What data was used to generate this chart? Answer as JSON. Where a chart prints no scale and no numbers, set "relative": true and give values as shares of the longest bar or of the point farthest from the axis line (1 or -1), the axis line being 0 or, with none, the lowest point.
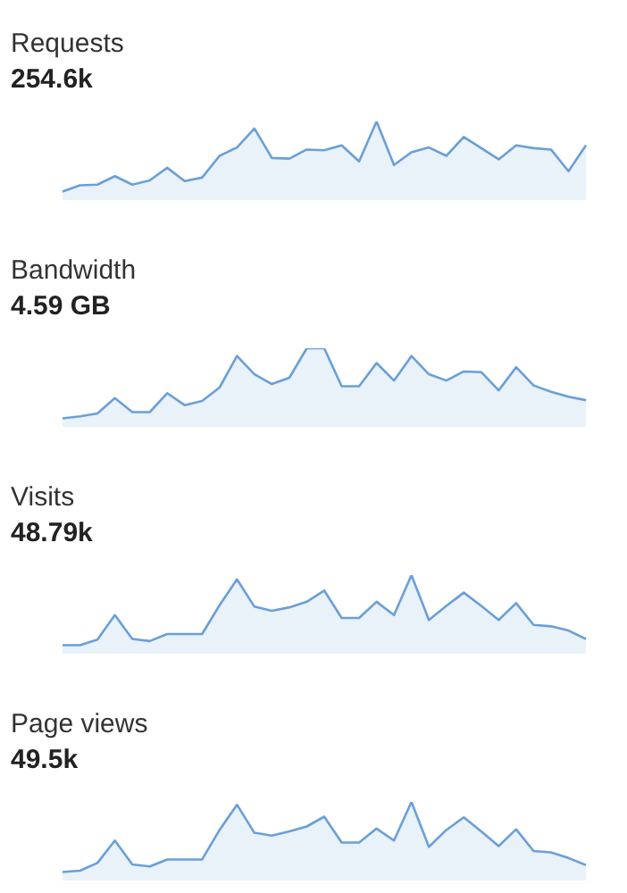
{
  "chart_data": [
    {
      "type": "area",
      "title": "Requests",
      "subtitle": "254.6k",
      "relative": true,
      "color": "#6a9fd8",
      "categories": [
        null,
        null,
        null,
        null,
        null,
        null,
        null,
        null,
        null,
        null,
        null,
        null,
        null,
        null,
        null,
        null,
        null,
        null,
        null,
        null,
        null,
        null,
        null,
        null,
        null,
        null,
        null,
        null,
        null,
        null,
        null
      ],
      "values": [
        0,
        0.09,
        0.1,
        0.22,
        0.1,
        0.16,
        0.34,
        0.15,
        0.2,
        0.51,
        0.63,
        0.9,
        0.48,
        0.47,
        0.6,
        0.59,
        0.66,
        0.43,
        1,
        0.38,
        0.56,
        0.63,
        0.51,
        0.78,
        0.62,
        0.46,
        0.66,
        0.62,
        0.6,
        0.29,
        0.66
      ]
    },
    {
      "type": "area",
      "title": "Bandwidth",
      "subtitle": "4.59 GB",
      "relative": true,
      "color": "#6a9fd8",
      "categories": [
        null,
        null,
        null,
        null,
        null,
        null,
        null,
        null,
        null,
        null,
        null,
        null,
        null,
        null,
        null,
        null,
        null,
        null,
        null,
        null,
        null,
        null,
        null,
        null,
        null,
        null,
        null,
        null,
        null,
        null,
        null
      ],
      "values": [
        0,
        0.03,
        0.07,
        0.29,
        0.09,
        0.09,
        0.36,
        0.19,
        0.25,
        0.44,
        0.89,
        0.63,
        0.49,
        0.58,
        1,
        1,
        0.46,
        0.46,
        0.79,
        0.54,
        0.89,
        0.63,
        0.54,
        0.67,
        0.66,
        0.4,
        0.73,
        0.47,
        0.38,
        0.31,
        0.26
      ]
    },
    {
      "type": "area",
      "title": "Visits",
      "subtitle": "48.79k",
      "relative": true,
      "color": "#6a9fd8",
      "categories": [
        null,
        null,
        null,
        null,
        null,
        null,
        null,
        null,
        null,
        null,
        null,
        null,
        null,
        null,
        null,
        null,
        null,
        null,
        null,
        null,
        null,
        null,
        null,
        null,
        null,
        null,
        null,
        null,
        null,
        null,
        null
      ],
      "values": [
        0,
        0,
        0.08,
        0.43,
        0.09,
        0.06,
        0.16,
        0.16,
        0.16,
        0.57,
        0.94,
        0.55,
        0.49,
        0.54,
        0.62,
        0.78,
        0.39,
        0.39,
        0.62,
        0.43,
        1,
        0.36,
        0.56,
        0.75,
        0.56,
        0.36,
        0.6,
        0.29,
        0.27,
        0.21,
        0.09
      ]
    },
    {
      "type": "area",
      "title": "Page views",
      "subtitle": "49.5k",
      "relative": true,
      "color": "#6a9fd8",
      "categories": [
        null,
        null,
        null,
        null,
        null,
        null,
        null,
        null,
        null,
        null,
        null,
        null,
        null,
        null,
        null,
        null,
        null,
        null,
        null,
        null,
        null,
        null,
        null,
        null,
        null,
        null,
        null,
        null,
        null,
        null,
        null
      ],
      "values": [
        0,
        0.02,
        0.13,
        0.45,
        0.11,
        0.08,
        0.18,
        0.18,
        0.18,
        0.6,
        0.96,
        0.56,
        0.52,
        0.58,
        0.65,
        0.79,
        0.42,
        0.42,
        0.62,
        0.45,
        1,
        0.36,
        0.6,
        0.78,
        0.58,
        0.37,
        0.61,
        0.3,
        0.28,
        0.2,
        0.1
      ]
    }
  ]
}
